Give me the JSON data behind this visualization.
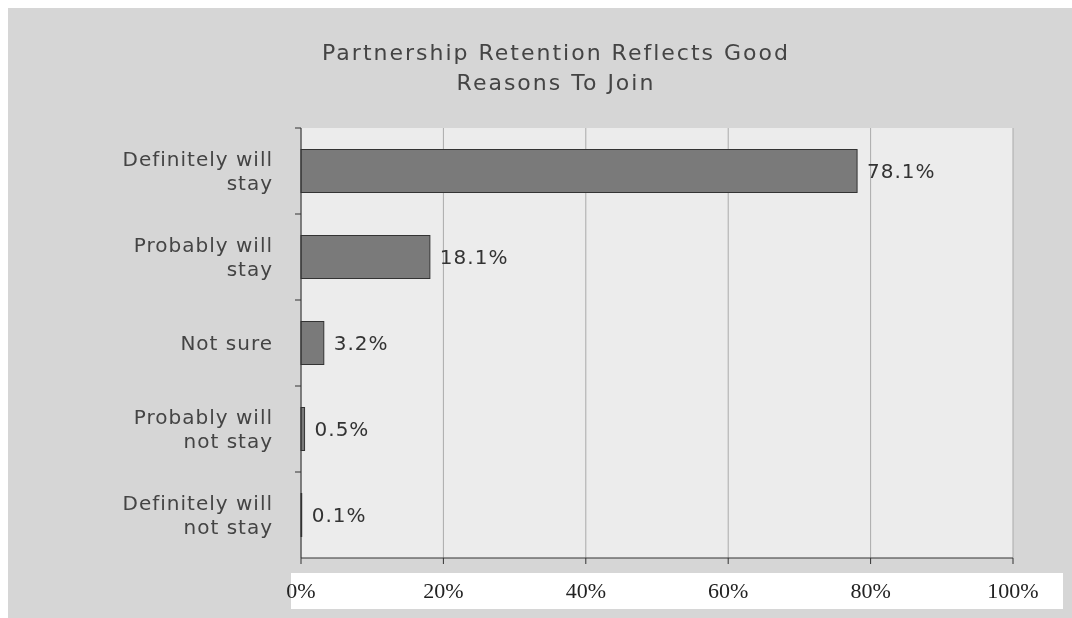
{
  "chart_data": {
    "type": "bar",
    "orientation": "horizontal",
    "title": "Partnership Retention Reflects Good Reasons To Join",
    "categories": [
      "Definitely will stay",
      "Probably will stay",
      "Not sure",
      "Probably will not stay",
      "Definitely will not stay"
    ],
    "values": [
      78.1,
      18.1,
      3.2,
      0.5,
      0.1
    ],
    "value_labels": [
      "78.1%",
      "18.1%",
      "3.2%",
      "0.5%",
      "0.1%"
    ],
    "color": "#7a7a7a",
    "xlim": [
      0,
      100
    ],
    "xticks": [
      {
        "value": 0,
        "label": "0%"
      },
      {
        "value": 20,
        "label": "20%"
      },
      {
        "value": 40,
        "label": "40%"
      },
      {
        "value": 60,
        "label": "60%"
      },
      {
        "value": 80,
        "label": "80%"
      },
      {
        "value": 100,
        "label": "100%"
      }
    ],
    "grid": "x"
  }
}
